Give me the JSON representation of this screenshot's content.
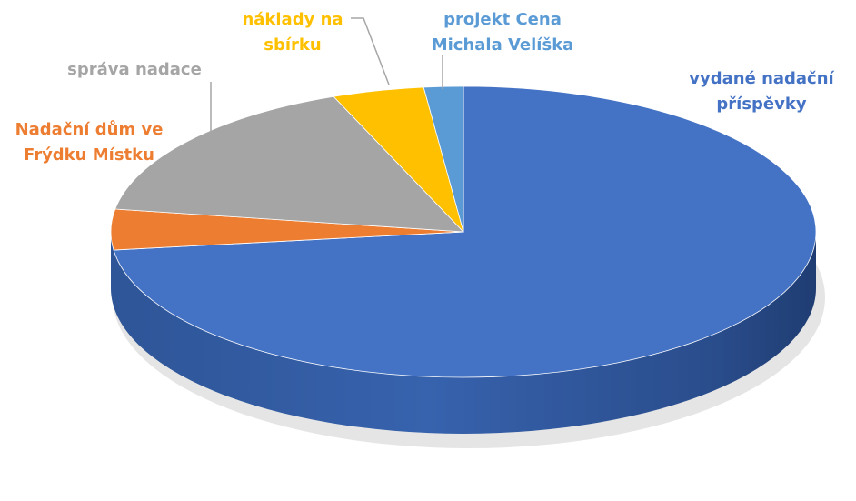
{
  "chart_data": {
    "type": "pie",
    "categories": [
      "vydané nadační příspěvky",
      "Nadační dům ve Frýdku Místku",
      "správa nadace",
      "náklady na sbírku",
      "projekt Cena Michala Velíška"
    ],
    "values": [
      73,
      4.5,
      16.5,
      4.2,
      1.8
    ],
    "colors": [
      "#4472C4",
      "#ED7D31",
      "#A5A5A5",
      "#FFC000",
      "#5B9BD5"
    ],
    "labels": [
      [
        "vydané nadační",
        "příspěvky"
      ],
      [
        "Nadační dům ve",
        "Frýdku Místku"
      ],
      [
        "správa nadace"
      ],
      [
        "náklady na",
        "sbírku"
      ],
      [
        "projekt Cena",
        "Michala Velíška"
      ]
    ],
    "label_colors": [
      "#4472C4",
      "#ED7D31",
      "#A5A5A5",
      "#FFC000",
      "#5B9BD5"
    ],
    "start_angle_deg": -90,
    "direction": "clockwise",
    "style": "3d-perspective"
  }
}
